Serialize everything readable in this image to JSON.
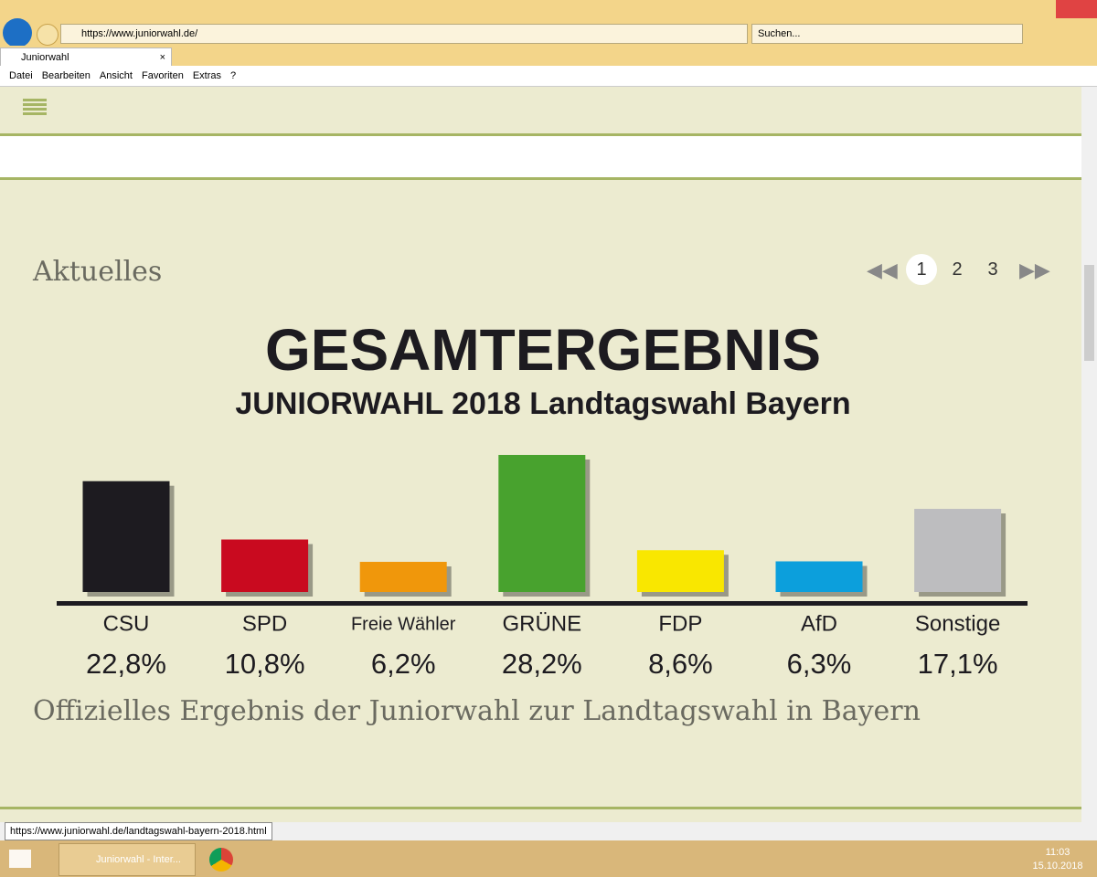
{
  "browser": {
    "url": "https://www.juniorwahl.de/",
    "search_placeholder": "Suchen...",
    "tab_title": "Juniorwahl",
    "menu": [
      "Datei",
      "Bearbeiten",
      "Ansicht",
      "Favoriten",
      "Extras",
      "?"
    ],
    "status_url": "https://www.juniorwahl.de/landtagswahl-bayern-2018.html"
  },
  "page": {
    "section_title": "Aktuelles",
    "pagination": [
      "1",
      "2",
      "3"
    ],
    "caption": "Offizielles Ergebnis der Juniorwahl zur Landtagswahl in Bayern"
  },
  "chart_data": {
    "type": "bar",
    "title": "GESAMTERGEBNIS",
    "subtitle": "JUNIORWAHL 2018 Landtagswahl Bayern",
    "categories": [
      "CSU",
      "SPD",
      "Freie Wähler",
      "GRÜNE",
      "FDP",
      "AfD",
      "Sonstige"
    ],
    "values": [
      22.8,
      10.8,
      6.2,
      28.2,
      8.6,
      6.3,
      17.1
    ],
    "value_labels": [
      "22,8%",
      "10,8%",
      "6,2%",
      "28,2%",
      "8,6%",
      "6,3%",
      "17,1%"
    ],
    "colors": [
      "#1d1b20",
      "#c90a1f",
      "#f0970b",
      "#48a22e",
      "#f9e700",
      "#0c9fdc",
      "#bdbdbf"
    ]
  },
  "taskbar": {
    "app": "Juniorwahl - Inter...",
    "time": "11:03",
    "date": "15.10.2018"
  }
}
